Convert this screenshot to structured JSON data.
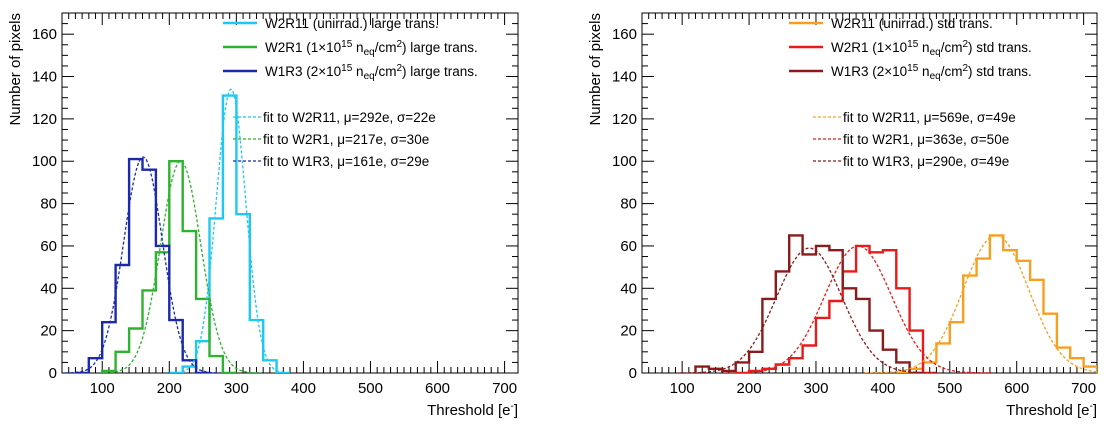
{
  "chart_data": [
    {
      "type": "step-histogram",
      "xlabel": "Threshold [e⁻]",
      "ylabel": "Number of pixels",
      "xlim": [
        40,
        720
      ],
      "ylim": [
        0,
        170
      ],
      "xticks": [
        "100",
        "200",
        "300",
        "400",
        "500",
        "600",
        "700"
      ],
      "yticks": [
        "0",
        "20",
        "40",
        "60",
        "80",
        "100",
        "120",
        "140",
        "160"
      ],
      "bin_width": 20,
      "legend_position": "top-right",
      "series": [
        {
          "name": "W2R11 (unirrad.) large trans.",
          "color": "#1ec8f0",
          "bins": [
            [
              200,
              0
            ],
            [
              220,
              3
            ],
            [
              240,
              15
            ],
            [
              260,
              73
            ],
            [
              280,
              131
            ],
            [
              300,
              75
            ],
            [
              320,
              25
            ],
            [
              340,
              6
            ],
            [
              360,
              0
            ]
          ]
        },
        {
          "name": "W2R1 (1×10¹⁵ n_eq/cm²) large trans.",
          "color": "#2db32d",
          "bins": [
            [
              100,
              1
            ],
            [
              120,
              10
            ],
            [
              140,
              21
            ],
            [
              160,
              39
            ],
            [
              180,
              57
            ],
            [
              200,
              100
            ],
            [
              220,
              67
            ],
            [
              240,
              35
            ],
            [
              260,
              8
            ],
            [
              280,
              0
            ]
          ]
        },
        {
          "name": "W1R3 (2×10¹⁵ n_eq/cm²) large trans.",
          "color": "#1a2aa8",
          "bins": [
            [
              60,
              0
            ],
            [
              80,
              7
            ],
            [
              100,
              24
            ],
            [
              120,
              51
            ],
            [
              140,
              101
            ],
            [
              160,
              96
            ],
            [
              180,
              60
            ],
            [
              200,
              25
            ],
            [
              220,
              6
            ],
            [
              240,
              0
            ]
          ]
        }
      ],
      "fits": [
        {
          "name": "fit to W2R11, μ=292e, σ=22e",
          "color": "#1ec8f0",
          "mu": 292,
          "sigma": 22,
          "amp": 134
        },
        {
          "name": "fit to W2R1, μ=217e, σ=30e",
          "color": "#2db32d",
          "mu": 217,
          "sigma": 30,
          "amp": 100
        },
        {
          "name": "fit to W1R3, μ=161e, σ=29e",
          "color": "#1a2aa8",
          "mu": 161,
          "sigma": 29,
          "amp": 102
        }
      ]
    },
    {
      "type": "step-histogram",
      "xlabel": "Threshold [e⁻]",
      "ylabel": "Number of pixels",
      "xlim": [
        40,
        720
      ],
      "ylim": [
        0,
        170
      ],
      "xticks": [
        "100",
        "200",
        "300",
        "400",
        "500",
        "600",
        "700"
      ],
      "yticks": [
        "0",
        "20",
        "40",
        "60",
        "80",
        "100",
        "120",
        "140",
        "160"
      ],
      "bin_width": 20,
      "legend_position": "top-right",
      "series": [
        {
          "name": "W2R11 (unirrad.) std trans.",
          "color": "#f5a020",
          "bins": [
            [
              420,
              0
            ],
            [
              440,
              2
            ],
            [
              460,
              5
            ],
            [
              480,
              14
            ],
            [
              500,
              24
            ],
            [
              520,
              46
            ],
            [
              540,
              54
            ],
            [
              560,
              65
            ],
            [
              580,
              58
            ],
            [
              600,
              53
            ],
            [
              620,
              44
            ],
            [
              640,
              28
            ],
            [
              660,
              12
            ],
            [
              680,
              7
            ],
            [
              700,
              3
            ]
          ]
        },
        {
          "name": "W2R1 (1×10¹⁵ n_eq/cm²) std trans.",
          "color": "#e81a1a",
          "bins": [
            [
              180,
              0
            ],
            [
              200,
              1
            ],
            [
              220,
              2
            ],
            [
              240,
              4
            ],
            [
              260,
              7
            ],
            [
              280,
              13
            ],
            [
              300,
              26
            ],
            [
              320,
              34
            ],
            [
              340,
              48
            ],
            [
              360,
              60
            ],
            [
              380,
              57
            ],
            [
              400,
              58
            ],
            [
              420,
              40
            ],
            [
              440,
              20
            ],
            [
              460,
              0
            ]
          ]
        },
        {
          "name": "W1R3 (2×10¹⁵ n_eq/cm²) std trans.",
          "color": "#8b1a1a",
          "bins": [
            [
              120,
              3
            ],
            [
              140,
              2
            ],
            [
              160,
              1
            ],
            [
              180,
              5
            ],
            [
              200,
              10
            ],
            [
              220,
              35
            ],
            [
              240,
              48
            ],
            [
              260,
              65
            ],
            [
              280,
              56
            ],
            [
              300,
              60
            ],
            [
              320,
              58
            ],
            [
              340,
              40
            ],
            [
              360,
              35
            ],
            [
              380,
              20
            ],
            [
              400,
              11
            ],
            [
              420,
              5
            ],
            [
              440,
              0
            ]
          ]
        }
      ],
      "fits": [
        {
          "name": "fit to W2R11, μ=569e, σ=49e",
          "color": "#f5a020",
          "mu": 569,
          "sigma": 49,
          "amp": 65
        },
        {
          "name": "fit to W2R1, μ=363e, σ=50e",
          "color": "#e81a1a",
          "mu": 363,
          "sigma": 50,
          "amp": 60
        },
        {
          "name": "fit to W1R3, μ=290e, σ=49e",
          "color": "#8b1a1a",
          "mu": 290,
          "sigma": 49,
          "amp": 59
        }
      ]
    }
  ]
}
